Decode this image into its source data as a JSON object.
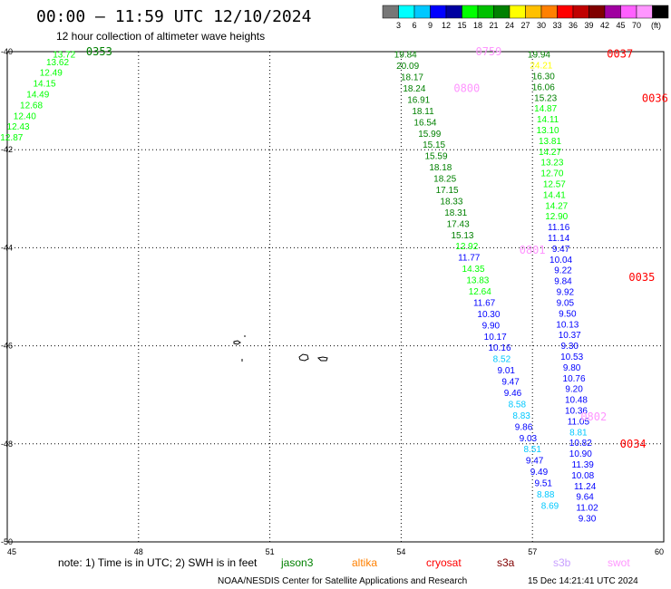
{
  "header": {
    "title": "00:00 — 11:59 UTC 12/10/2024",
    "subtitle": "12 hour collection of altimeter wave heights"
  },
  "color_scale": {
    "colors": [
      "#777777",
      "#00ffff",
      "#00c8ff",
      "#0000ff",
      "#0000a0",
      "#00ff00",
      "#00c000",
      "#008000",
      "#ffff00",
      "#ffc000",
      "#ff8000",
      "#ff0000",
      "#c00000",
      "#800000",
      "#a000a0",
      "#ff60ff",
      "#ff96ff",
      "#000000"
    ],
    "labels": [
      "3",
      "6",
      "9",
      "12",
      "15",
      "18",
      "21",
      "24",
      "27",
      "30",
      "33",
      "36",
      "39",
      "42",
      "45",
      "70"
    ],
    "unit": "(ft)"
  },
  "axes": {
    "x_ticks": [
      "45",
      "48",
      "51",
      "54",
      "57",
      "60"
    ],
    "y_ticks": [
      "-40",
      "-42",
      "-44",
      "-46",
      "-48",
      "-50"
    ]
  },
  "chart_data": {
    "type": "scatter",
    "xlim": [
      45,
      60
    ],
    "ylim": [
      -50,
      -40
    ],
    "grid": true,
    "tracks": [
      {
        "satellite": "jason3",
        "points": [
          {
            "lon": 46.3,
            "lat": -40.05,
            "v": "13.72",
            "c": "#00ff00"
          },
          {
            "lon": 46.15,
            "lat": -40.2,
            "v": "13.62",
            "c": "#00ff00"
          },
          {
            "lon": 46.0,
            "lat": -40.42,
            "v": "12.49",
            "c": "#00ff00"
          },
          {
            "lon": 45.85,
            "lat": -40.64,
            "v": "14.15",
            "c": "#00ff00"
          },
          {
            "lon": 45.7,
            "lat": -40.86,
            "v": "14.49",
            "c": "#00ff00"
          },
          {
            "lon": 45.55,
            "lat": -41.08,
            "v": "12.68",
            "c": "#00ff00"
          },
          {
            "lon": 45.4,
            "lat": -41.3,
            "v": "12.40",
            "c": "#00ff00"
          },
          {
            "lon": 45.25,
            "lat": -41.52,
            "v": "12.43",
            "c": "#00ff00"
          },
          {
            "lon": 45.1,
            "lat": -41.74,
            "v": "12.87",
            "c": "#00ff00"
          }
        ]
      },
      {
        "satellite": "jason3",
        "points": [
          {
            "lon": 54.1,
            "lat": -40.05,
            "v": "19.84",
            "c": "#008000"
          },
          {
            "lon": 54.15,
            "lat": -40.28,
            "v": "20.09",
            "c": "#008000"
          },
          {
            "lon": 54.25,
            "lat": -40.51,
            "v": "18.17",
            "c": "#008000"
          },
          {
            "lon": 54.3,
            "lat": -40.74,
            "v": "18.24",
            "c": "#008000"
          },
          {
            "lon": 54.4,
            "lat": -40.97,
            "v": "16.91",
            "c": "#008000"
          },
          {
            "lon": 54.5,
            "lat": -41.2,
            "v": "18.11",
            "c": "#008000"
          },
          {
            "lon": 54.55,
            "lat": -41.43,
            "v": "16.54",
            "c": "#008000"
          },
          {
            "lon": 54.65,
            "lat": -41.66,
            "v": "15.99",
            "c": "#008000"
          },
          {
            "lon": 54.75,
            "lat": -41.89,
            "v": "15.15",
            "c": "#008000"
          },
          {
            "lon": 54.8,
            "lat": -42.12,
            "v": "15.59",
            "c": "#008000"
          },
          {
            "lon": 54.9,
            "lat": -42.35,
            "v": "18.18",
            "c": "#008000"
          },
          {
            "lon": 55.0,
            "lat": -42.58,
            "v": "18.25",
            "c": "#008000"
          },
          {
            "lon": 55.05,
            "lat": -42.81,
            "v": "17.15",
            "c": "#008000"
          },
          {
            "lon": 55.15,
            "lat": -43.04,
            "v": "18.33",
            "c": "#008000"
          },
          {
            "lon": 55.25,
            "lat": -43.27,
            "v": "18.31",
            "c": "#008000"
          },
          {
            "lon": 55.3,
            "lat": -43.5,
            "v": "17.43",
            "c": "#008000"
          },
          {
            "lon": 55.4,
            "lat": -43.73,
            "v": "15.13",
            "c": "#008000"
          },
          {
            "lon": 55.5,
            "lat": -43.96,
            "v": "12.92",
            "c": "#00ff00"
          },
          {
            "lon": 55.55,
            "lat": -44.19,
            "v": "11.77",
            "c": "#0000ff"
          },
          {
            "lon": 55.65,
            "lat": -44.42,
            "v": "14.35",
            "c": "#00ff00"
          },
          {
            "lon": 55.75,
            "lat": -44.65,
            "v": "13.83",
            "c": "#00ff00"
          },
          {
            "lon": 55.8,
            "lat": -44.88,
            "v": "12.64",
            "c": "#00ff00"
          },
          {
            "lon": 55.9,
            "lat": -45.11,
            "v": "11.67",
            "c": "#0000ff"
          },
          {
            "lon": 56.0,
            "lat": -45.34,
            "v": "10.30",
            "c": "#0000ff"
          },
          {
            "lon": 56.05,
            "lat": -45.57,
            "v": "9.90",
            "c": "#0000ff"
          },
          {
            "lon": 56.15,
            "lat": -45.8,
            "v": "10.17",
            "c": "#0000ff"
          },
          {
            "lon": 56.25,
            "lat": -46.03,
            "v": "10.16",
            "c": "#0000ff"
          },
          {
            "lon": 56.3,
            "lat": -46.26,
            "v": "8.52",
            "c": "#00c8ff"
          },
          {
            "lon": 56.4,
            "lat": -46.49,
            "v": "9.01",
            "c": "#0000ff"
          },
          {
            "lon": 56.5,
            "lat": -46.72,
            "v": "9.47",
            "c": "#0000ff"
          },
          {
            "lon": 56.55,
            "lat": -46.95,
            "v": "9.46",
            "c": "#0000ff"
          },
          {
            "lon": 56.65,
            "lat": -47.18,
            "v": "8.58",
            "c": "#00c8ff"
          },
          {
            "lon": 56.75,
            "lat": -47.41,
            "v": "8.83",
            "c": "#00c8ff"
          },
          {
            "lon": 56.8,
            "lat": -47.64,
            "v": "9.86",
            "c": "#0000ff"
          },
          {
            "lon": 56.9,
            "lat": -47.87,
            "v": "9.03",
            "c": "#0000ff"
          },
          {
            "lon": 57.0,
            "lat": -48.1,
            "v": "8.51",
            "c": "#00c8ff"
          },
          {
            "lon": 57.05,
            "lat": -48.33,
            "v": "9.47",
            "c": "#0000ff"
          },
          {
            "lon": 57.15,
            "lat": -48.56,
            "v": "9.49",
            "c": "#0000ff"
          },
          {
            "lon": 57.25,
            "lat": -48.79,
            "v": "9.51",
            "c": "#0000ff"
          },
          {
            "lon": 57.3,
            "lat": -49.02,
            "v": "8.88",
            "c": "#00c8ff"
          },
          {
            "lon": 57.4,
            "lat": -49.25,
            "v": "8.69",
            "c": "#00c8ff"
          }
        ]
      },
      {
        "satellite": "jason3",
        "points": [
          {
            "lon": 57.15,
            "lat": -40.05,
            "v": "19.94",
            "c": "#008000"
          },
          {
            "lon": 57.2,
            "lat": -40.27,
            "v": "24.21",
            "c": "#ffff00"
          },
          {
            "lon": 57.25,
            "lat": -40.49,
            "v": "16.30",
            "c": "#008000"
          },
          {
            "lon": 57.25,
            "lat": -40.71,
            "v": "16.06",
            "c": "#008000"
          },
          {
            "lon": 57.3,
            "lat": -40.93,
            "v": "15.23",
            "c": "#008000"
          },
          {
            "lon": 57.3,
            "lat": -41.15,
            "v": "14.87",
            "c": "#00ff00"
          },
          {
            "lon": 57.35,
            "lat": -41.37,
            "v": "14.11",
            "c": "#00ff00"
          },
          {
            "lon": 57.35,
            "lat": -41.59,
            "v": "13.10",
            "c": "#00ff00"
          },
          {
            "lon": 57.4,
            "lat": -41.81,
            "v": "13.81",
            "c": "#00ff00"
          },
          {
            "lon": 57.4,
            "lat": -42.03,
            "v": "14.27",
            "c": "#00ff00"
          },
          {
            "lon": 57.45,
            "lat": -42.25,
            "v": "13.23",
            "c": "#00ff00"
          },
          {
            "lon": 57.45,
            "lat": -42.47,
            "v": "12.70",
            "c": "#00ff00"
          },
          {
            "lon": 57.5,
            "lat": -42.69,
            "v": "12.57",
            "c": "#00ff00"
          },
          {
            "lon": 57.5,
            "lat": -42.91,
            "v": "14.41",
            "c": "#00ff00"
          },
          {
            "lon": 57.55,
            "lat": -43.13,
            "v": "14.27",
            "c": "#00ff00"
          },
          {
            "lon": 57.55,
            "lat": -43.35,
            "v": "12.90",
            "c": "#00ff00"
          },
          {
            "lon": 57.6,
            "lat": -43.57,
            "v": "11.16",
            "c": "#0000ff"
          },
          {
            "lon": 57.6,
            "lat": -43.79,
            "v": "11.14",
            "c": "#0000ff"
          },
          {
            "lon": 57.65,
            "lat": -44.01,
            "v": "9.47",
            "c": "#0000ff"
          },
          {
            "lon": 57.65,
            "lat": -44.23,
            "v": "10.04",
            "c": "#0000ff"
          },
          {
            "lon": 57.7,
            "lat": -44.45,
            "v": "9.22",
            "c": "#0000ff"
          },
          {
            "lon": 57.7,
            "lat": -44.67,
            "v": "9.84",
            "c": "#0000ff"
          },
          {
            "lon": 57.75,
            "lat": -44.89,
            "v": "9.92",
            "c": "#0000ff"
          },
          {
            "lon": 57.75,
            "lat": -45.11,
            "v": "9.05",
            "c": "#0000ff"
          },
          {
            "lon": 57.8,
            "lat": -45.33,
            "v": "9.50",
            "c": "#0000ff"
          },
          {
            "lon": 57.8,
            "lat": -45.55,
            "v": "10.13",
            "c": "#0000ff"
          },
          {
            "lon": 57.85,
            "lat": -45.77,
            "v": "10.37",
            "c": "#0000ff"
          },
          {
            "lon": 57.85,
            "lat": -45.99,
            "v": "9.30",
            "c": "#0000ff"
          },
          {
            "lon": 57.9,
            "lat": -46.21,
            "v": "10.53",
            "c": "#0000ff"
          },
          {
            "lon": 57.9,
            "lat": -46.43,
            "v": "9.80",
            "c": "#0000ff"
          },
          {
            "lon": 57.95,
            "lat": -46.65,
            "v": "10.76",
            "c": "#0000ff"
          },
          {
            "lon": 57.95,
            "lat": -46.87,
            "v": "9.20",
            "c": "#0000ff"
          },
          {
            "lon": 58.0,
            "lat": -47.09,
            "v": "10.48",
            "c": "#0000ff"
          },
          {
            "lon": 58.0,
            "lat": -47.31,
            "v": "10.36",
            "c": "#0000ff"
          },
          {
            "lon": 58.05,
            "lat": -47.53,
            "v": "11.05",
            "c": "#0000ff"
          },
          {
            "lon": 58.05,
            "lat": -47.75,
            "v": "8.81",
            "c": "#00c8ff"
          },
          {
            "lon": 58.1,
            "lat": -47.97,
            "v": "10.82",
            "c": "#0000ff"
          },
          {
            "lon": 58.1,
            "lat": -48.19,
            "v": "10.90",
            "c": "#0000ff"
          },
          {
            "lon": 58.15,
            "lat": -48.41,
            "v": "11.39",
            "c": "#0000ff"
          },
          {
            "lon": 58.15,
            "lat": -48.63,
            "v": "10.08",
            "c": "#0000ff"
          },
          {
            "lon": 58.2,
            "lat": -48.85,
            "v": "11.24",
            "c": "#0000ff"
          },
          {
            "lon": 58.2,
            "lat": -49.07,
            "v": "9.64",
            "c": "#0000ff"
          },
          {
            "lon": 58.25,
            "lat": -49.29,
            "v": "11.02",
            "c": "#0000ff"
          },
          {
            "lon": 58.25,
            "lat": -49.51,
            "v": "9.30",
            "c": "#0000ff"
          }
        ]
      }
    ],
    "time_labels": [
      {
        "t": "0353",
        "lon": 47.1,
        "lat": -40.0,
        "c": "#008000"
      },
      {
        "t": "0759",
        "lon": 56.0,
        "lat": -40.0,
        "c": "#ff96ff"
      },
      {
        "t": "0800",
        "lon": 55.5,
        "lat": -40.75,
        "c": "#ff96ff"
      },
      {
        "t": "0801",
        "lon": 57.0,
        "lat": -44.05,
        "c": "#ff96ff"
      },
      {
        "t": "0037",
        "lon": 59.0,
        "lat": -40.05,
        "c": "#ff0000"
      },
      {
        "t": "0036",
        "lon": 59.8,
        "lat": -40.95,
        "c": "#ff0000"
      },
      {
        "t": "0035",
        "lon": 59.5,
        "lat": -44.6,
        "c": "#ff0000"
      },
      {
        "t": "0034",
        "lon": 59.3,
        "lat": -48.0,
        "c": "#ff0000"
      },
      {
        "t": "0802",
        "lon": 58.4,
        "lat": -47.45,
        "c": "#ff96ff"
      }
    ]
  },
  "footer": {
    "note": "note: 1) Time is in UTC; 2) SWH is in feet",
    "satellites": [
      {
        "name": "jason3",
        "color": "#008000"
      },
      {
        "name": "altika",
        "color": "#ff8000"
      },
      {
        "name": "cryosat",
        "color": "#ff0000"
      },
      {
        "name": "s3a",
        "color": "#800000"
      },
      {
        "name": "s3b",
        "color": "#c8a0ff"
      },
      {
        "name": "swot",
        "color": "#ff96ff"
      }
    ],
    "credit": "NOAA/NESDIS Center for Satellite Applications and Research",
    "timestamp": "15 Dec 14:21:41 UTC 2024"
  }
}
